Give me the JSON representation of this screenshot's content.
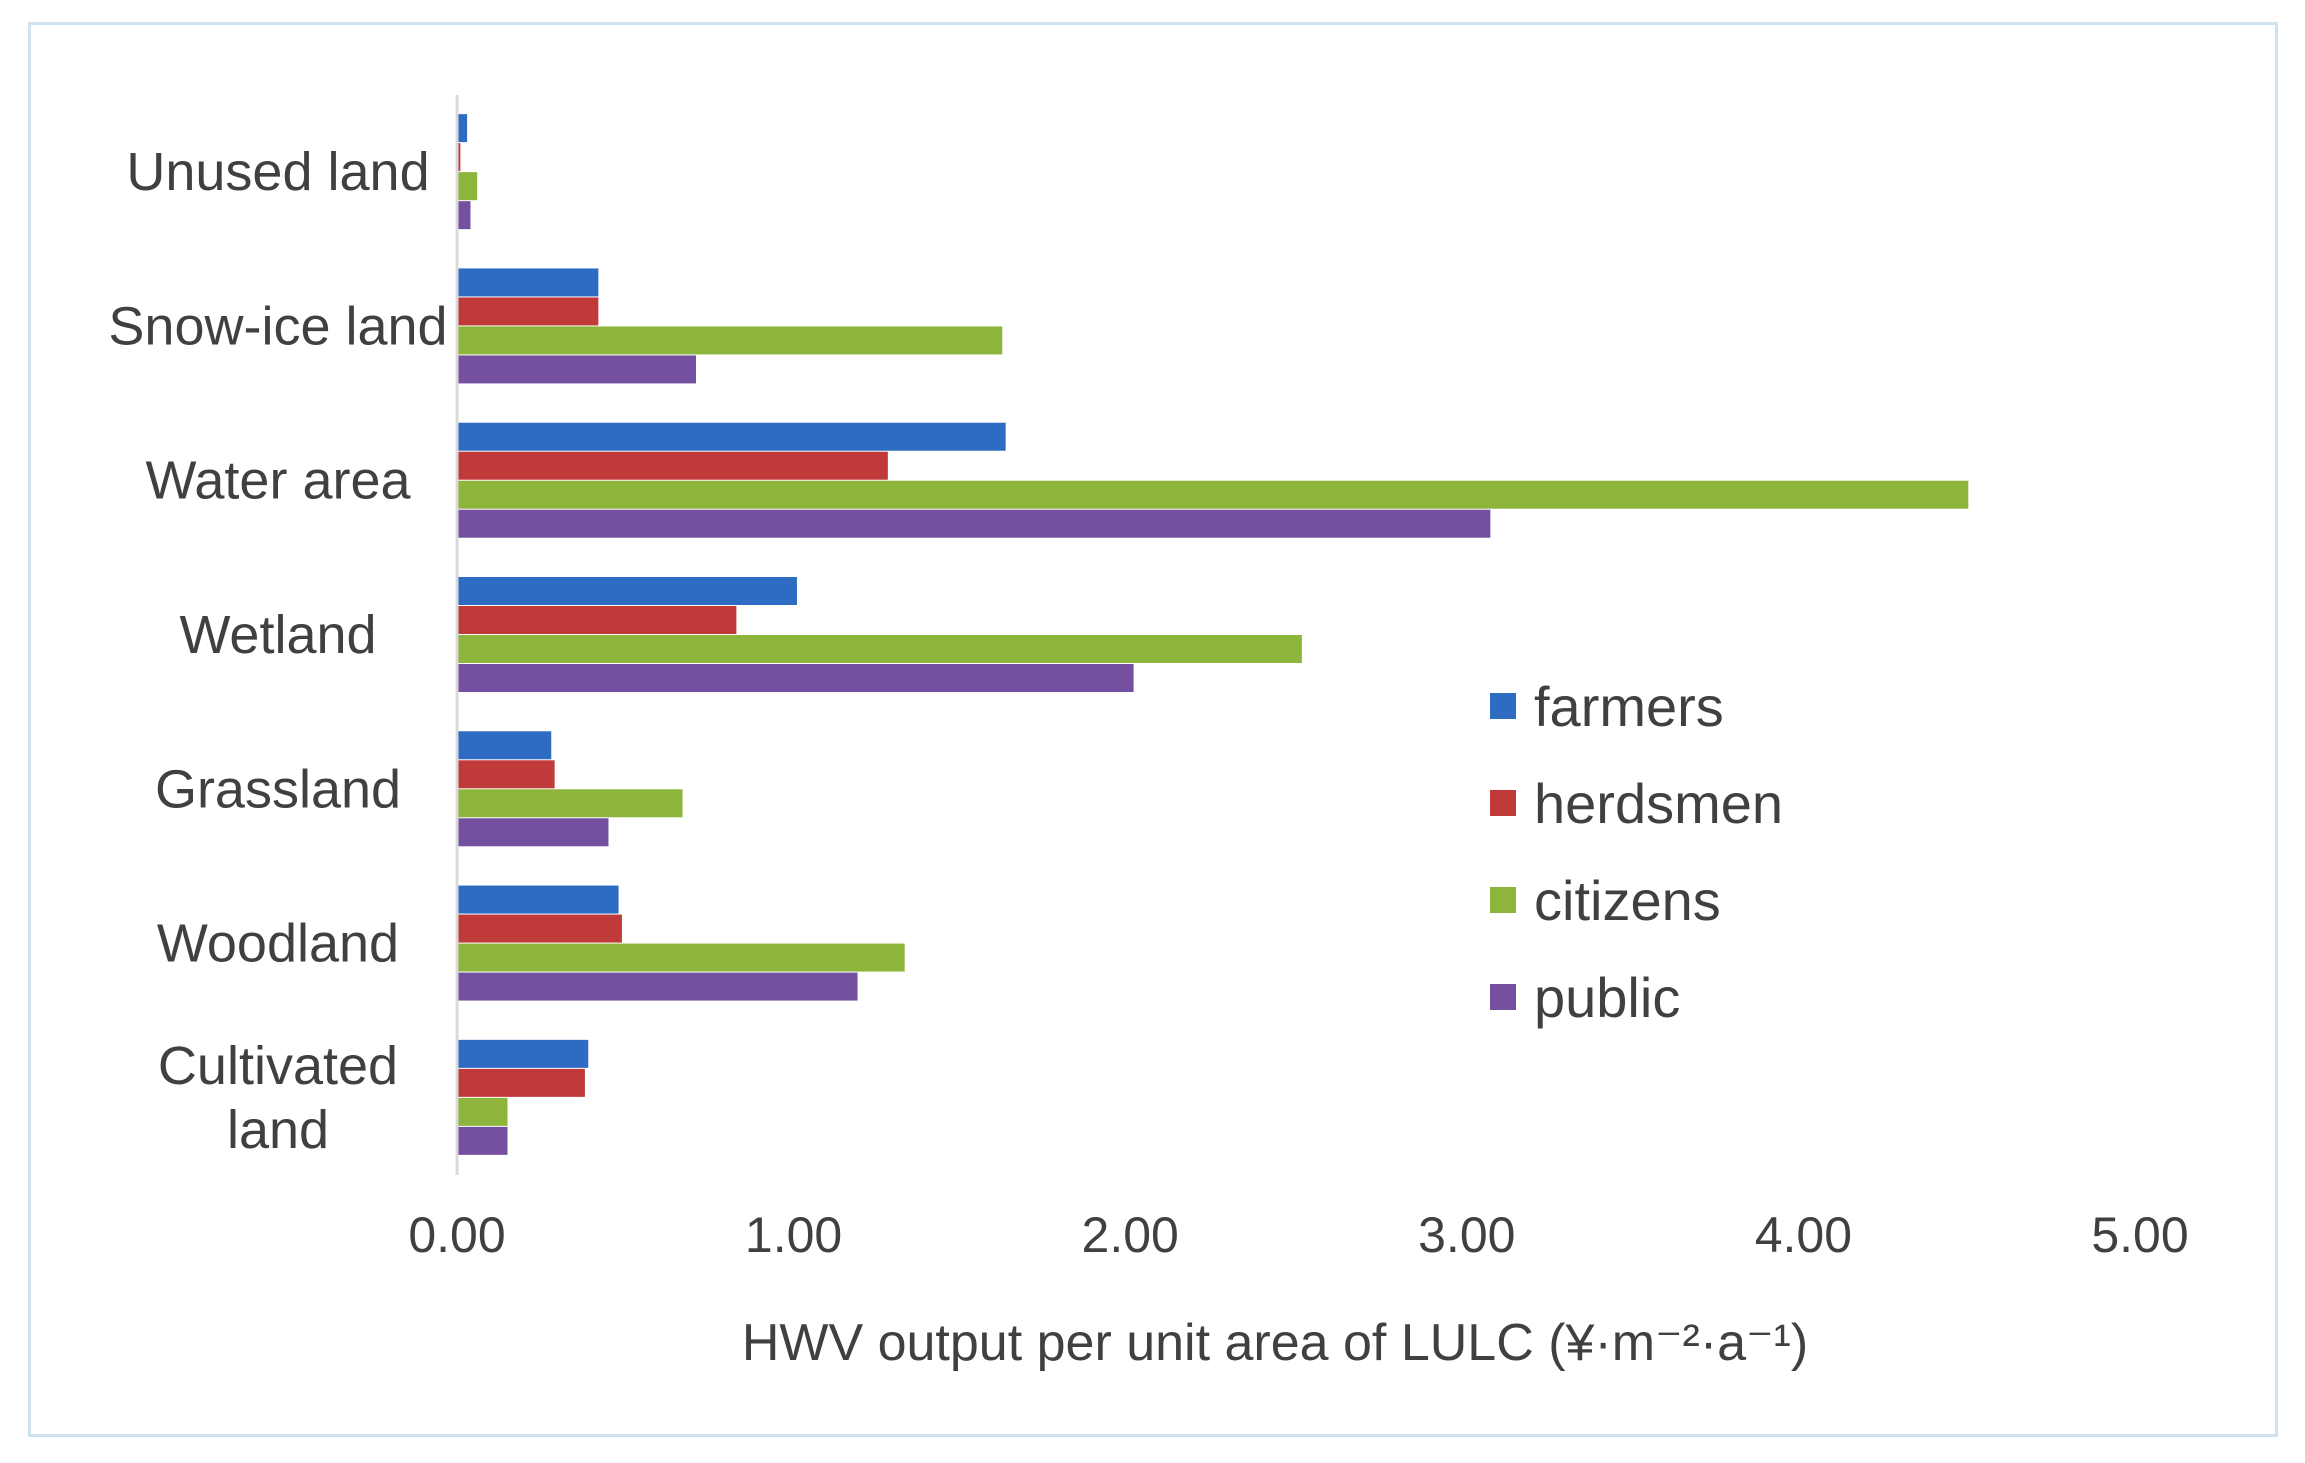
{
  "chart_data": {
    "type": "bar",
    "orientation": "horizontal",
    "title": "",
    "xlabel": "HWV  output per unit area of LULC (¥·m⁻²·a⁻¹)",
    "ylabel": "",
    "xlim": [
      0,
      5
    ],
    "xticks": [
      0,
      1,
      2,
      3,
      4,
      5
    ],
    "xtick_labels": [
      "0.00",
      "1.00",
      "2.00",
      "3.00",
      "4.00",
      "5.00"
    ],
    "categories": [
      [
        "Cultivated",
        "land"
      ],
      [
        "Woodland"
      ],
      [
        "Grassland"
      ],
      [
        "Wetland"
      ],
      [
        "Water area"
      ],
      [
        "Snow-ice land"
      ],
      [
        "Unused land"
      ]
    ],
    "series": [
      {
        "name": "farmers",
        "color": "#2e6cc4",
        "values": [
          0.39,
          0.48,
          0.28,
          1.01,
          1.63,
          0.42,
          0.03
        ]
      },
      {
        "name": "herdsmen",
        "color": "#c03a3a",
        "values": [
          0.38,
          0.49,
          0.29,
          0.83,
          1.28,
          0.42,
          0.01
        ]
      },
      {
        "name": "citizens",
        "color": "#8db53c",
        "values": [
          0.15,
          1.33,
          0.67,
          2.51,
          4.49,
          1.62,
          0.06
        ]
      },
      {
        "name": "public",
        "color": "#7550a0",
        "values": [
          0.15,
          1.19,
          0.45,
          2.01,
          3.07,
          0.71,
          0.04
        ]
      }
    ],
    "grid": false,
    "legend_position": "right-middle"
  }
}
